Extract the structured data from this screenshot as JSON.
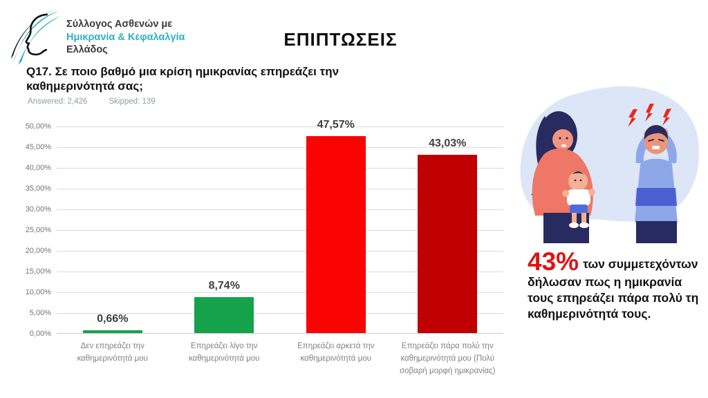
{
  "logo": {
    "line1": "Σύλλογος Ασθενών με",
    "line2": "Ημικρανία & Κεφαλαλγία",
    "line3": "Ελλάδος"
  },
  "header": {
    "title": "ΕΠΙΠΤΩΣΕΙΣ"
  },
  "question": {
    "text": "Q17. Σε ποιο βαθμό μια κρίση ημικρανίας επηρεάζει την καθημερινότητά σας;",
    "answered": "Answered: 2,426",
    "skipped": "Skipped: 139"
  },
  "chart_data": {
    "type": "bar",
    "title": "",
    "xlabel": "",
    "ylabel": "",
    "categories": [
      "Δεν επηρεάζει την καθημερινότητά μου",
      "Επηρεάζει λίγο την καθημερινότητά μου",
      "Επηρεάζει αρκετά την καθημερινότητά μου",
      "Επηρεάζει πάρα πολύ την καθημερινότητά μου (Πολύ σοβαρή μορφή ημικρανίας)"
    ],
    "values": [
      0.66,
      8.74,
      47.57,
      43.03
    ],
    "value_labels": [
      "0,66%",
      "8,74%",
      "47,57%",
      "43,03%"
    ],
    "bar_colors": [
      "#14a24b",
      "#14a24b",
      "#fa0303",
      "#c00000"
    ],
    "ylim": [
      0,
      50
    ],
    "ytick_step": 5,
    "ytick_labels": [
      "0,00%",
      "5,00%",
      "10,00%",
      "15,00%",
      "20,00%",
      "25,00%",
      "30,00%",
      "35,00%",
      "40,00%",
      "45,00%",
      "50,00%"
    ],
    "grid": true,
    "legend": false,
    "colors": {
      "gridline": "#d9d9d9",
      "tick_text": "#737373",
      "category_text": "#7f7f7f",
      "value_text": "#3f3f3f"
    }
  },
  "callout": {
    "stat": "43%",
    "text": "των συμμετεχόντων δήλωσαν πως η ημικρανία τους επηρεάζει πάρα πολύ τη καθημερινότητά τους.",
    "stat_color": "#dd1414"
  },
  "illustration": {
    "name": "headache-family-illustration",
    "description": "woman holding a baby and man clutching his head with red lightning bolts"
  }
}
